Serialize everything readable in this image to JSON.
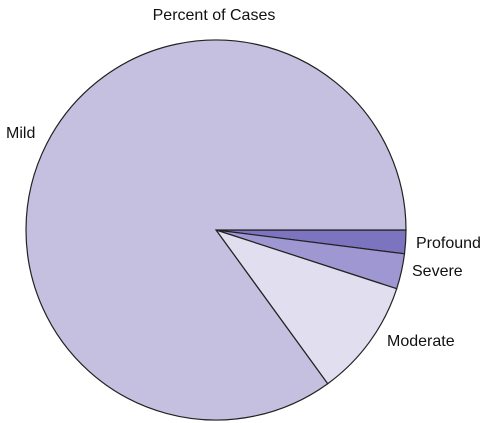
{
  "chart_data": {
    "type": "pie",
    "title": "Percent of Cases",
    "labels": [
      "Mild",
      "Moderate",
      "Severe",
      "Profound"
    ],
    "values": [
      85,
      10,
      3,
      2
    ],
    "colors": [
      "#c5c0e0",
      "#e1def0",
      "#9e97d1",
      "#7d74bf"
    ],
    "start_angle_deg": 0,
    "direction": "clockwise-from-3-oclock"
  }
}
